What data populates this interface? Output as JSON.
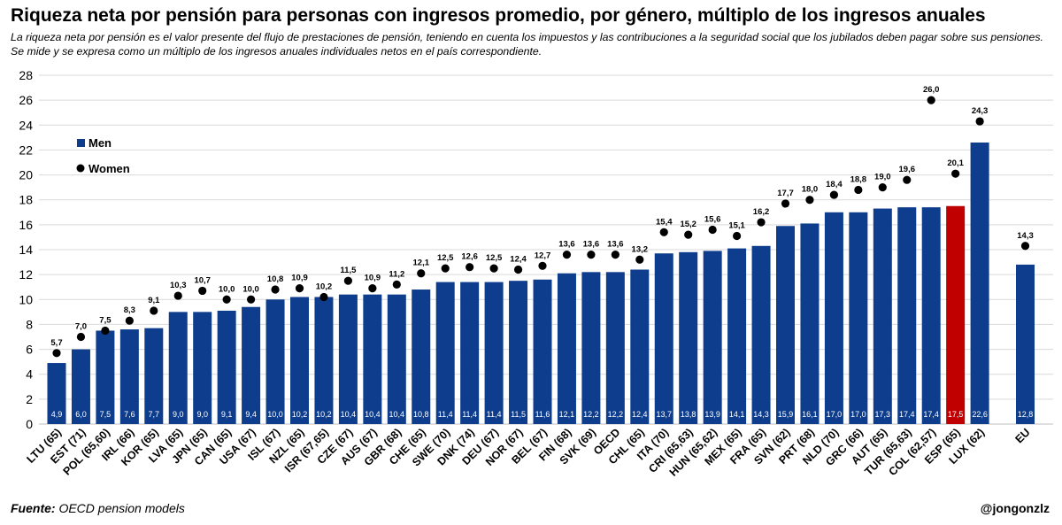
{
  "title": "Riqueza neta por pensión para personas con ingresos promedio, por género, múltiplo de los ingresos anuales",
  "subtitle": "La riqueza neta por pensión es el valor presente del flujo de prestaciones de pensión, teniendo en cuenta los impuestos y las contribuciones a la seguridad social que los jubilados deben pagar sobre sus pensiones. Se mide y se expresa como un múltiplo de los ingresos anuales individuales netos en el país correspondiente.",
  "source_label": "Fuente:",
  "source_text": "OECD pension models",
  "handle": "@jongonzlz",
  "colors": {
    "men": "#0d3d8c",
    "highlight": "#c00000",
    "women": "#000000",
    "grid": "#d9d9d9"
  },
  "chart_data": {
    "type": "bar",
    "title": "Riqueza neta por pensión para personas con ingresos promedio, por género, múltiplo de los ingresos anuales",
    "xlabel": "",
    "ylabel": "",
    "ylim": [
      0,
      28
    ],
    "yticks": [
      0,
      2,
      4,
      6,
      8,
      10,
      12,
      14,
      16,
      18,
      20,
      22,
      24,
      26,
      28
    ],
    "grid": true,
    "legend": "top-left",
    "highlight_category": "ESP (65)",
    "categories": [
      "LTU (65)",
      "EST (71)",
      "POL (65,60)",
      "IRL (66)",
      "KOR (65)",
      "LVA (65)",
      "JPN (65)",
      "CAN (65)",
      "USA (67)",
      "ISL (67)",
      "NZL (65)",
      "ISR (67,65)",
      "CZE (67)",
      "AUS (67)",
      "GBR (68)",
      "CHE (65)",
      "SWE (70)",
      "DNK (74)",
      "DEU (67)",
      "NOR (67)",
      "BEL (67)",
      "FIN (68)",
      "SVK (69)",
      "OECD",
      "CHL (65)",
      "ITA (70)",
      "CRI (65,63)",
      "HUN (65,62)",
      "MEX (65)",
      "FRA (65)",
      "SVN (62)",
      "PRT (68)",
      "NLD (70)",
      "GRC (66)",
      "AUT (65)",
      "TUR (65,63)",
      "COL (62,57)",
      "ESP (65)",
      "LUX (62)",
      "EU"
    ],
    "series": [
      {
        "name": "Men",
        "kind": "bar",
        "values": [
          4.9,
          6.0,
          7.5,
          7.6,
          7.7,
          9.0,
          9.0,
          9.1,
          9.4,
          10.0,
          10.2,
          10.2,
          10.4,
          10.4,
          10.4,
          10.8,
          11.4,
          11.4,
          11.4,
          11.5,
          11.6,
          12.1,
          12.2,
          12.2,
          12.4,
          13.7,
          13.8,
          13.9,
          14.1,
          14.3,
          15.9,
          16.1,
          17.0,
          17.0,
          17.3,
          17.4,
          17.4,
          17.5,
          22.6,
          12.8
        ]
      },
      {
        "name": "Women",
        "kind": "marker",
        "values": [
          5.7,
          7.0,
          7.5,
          8.3,
          9.1,
          10.3,
          10.7,
          10.0,
          10.0,
          10.8,
          10.9,
          10.2,
          11.5,
          10.9,
          11.2,
          12.1,
          12.5,
          12.6,
          12.5,
          12.4,
          12.7,
          13.6,
          13.6,
          13.6,
          13.2,
          15.4,
          15.2,
          15.6,
          15.1,
          16.2,
          17.7,
          18.0,
          18.4,
          18.8,
          19.0,
          19.6,
          26.0,
          20.1,
          24.3,
          14.3
        ]
      }
    ],
    "value_format": "decimal-comma-1"
  }
}
